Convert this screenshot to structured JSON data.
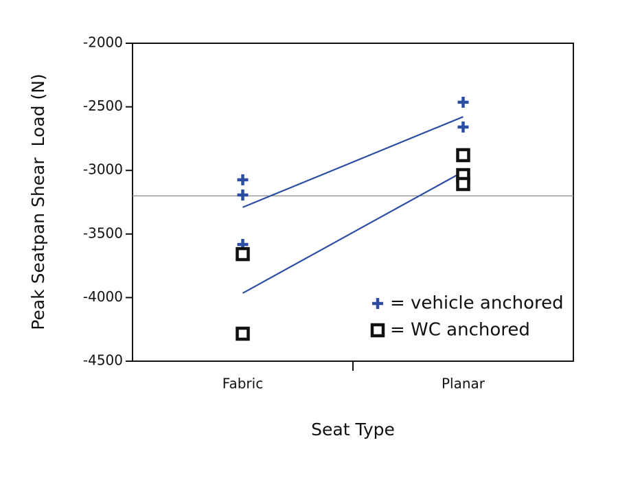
{
  "chart_data": {
    "type": "scatter",
    "x_label": "Seat Type",
    "y_label": "Peak Seatpan Shear  Load (N)",
    "xlim": [
      0.5,
      2.5
    ],
    "xticks": [
      {
        "value": 1,
        "label": "Fabric"
      },
      {
        "value": 2,
        "label": "Planar"
      }
    ],
    "ylim": [
      -4500,
      -2000
    ],
    "yticks": [
      -2000,
      -2500,
      -3000,
      -3500,
      -4000,
      -4500
    ],
    "series": [
      {
        "name": "= vehicle anchored",
        "marker": "plus",
        "color": "#2b4ea2",
        "x": [
          1,
          1,
          1,
          2,
          2
        ],
        "values": [
          -3074,
          -3193,
          -3582,
          -2464,
          -2659
        ]
      },
      {
        "name": "= WC anchored",
        "marker": "square",
        "color": "#111111",
        "x": [
          1,
          1,
          2,
          2,
          2
        ],
        "values": [
          -3658,
          -4284,
          -2880,
          -3037,
          -3107
        ]
      }
    ],
    "lines": [
      {
        "color": "#2b4ea2",
        "x": [
          1,
          2
        ],
        "values": [
          -3290,
          -2578
        ]
      },
      {
        "color": "#2b4ea2",
        "x": [
          1,
          2
        ],
        "values": [
          -3965,
          -3010
        ]
      }
    ],
    "reference_line": {
      "value": -3200,
      "color": "#999999"
    }
  }
}
